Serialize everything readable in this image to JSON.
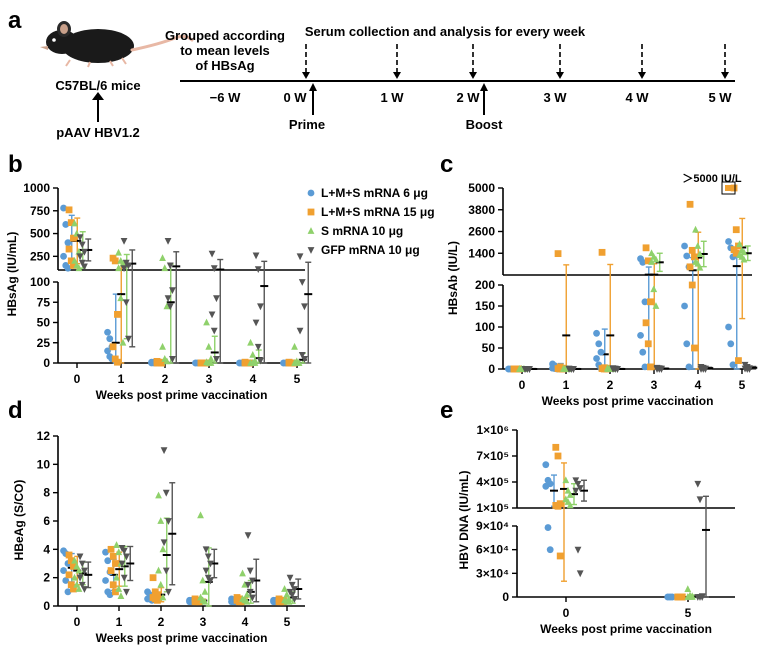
{
  "colors": {
    "blue": "#5b9bd5",
    "orange": "#f0a030",
    "green": "#8fd16b",
    "gray": "#555555",
    "axis": "#000000"
  },
  "panel_a": {
    "letter": "a",
    "mouse_label": "C57BL/6 mice",
    "injection_label": "pAAV HBV1.2",
    "grouped_label": [
      "Grouped according",
      "to mean levels",
      "of HBsAg"
    ],
    "serum_label": "Serum collection and analysis for every week",
    "timepoints": [
      "−6 W",
      "0 W",
      "1 W",
      "2 W",
      "3 W",
      "4 W",
      "5 W"
    ],
    "prime_label": "Prime",
    "boost_label": "Boost"
  },
  "legend": [
    {
      "label": "L+M+S mRNA 6 μg",
      "color": "blue",
      "marker": "circle"
    },
    {
      "label": "L+M+S mRNA 15 μg",
      "color": "orange",
      "marker": "square"
    },
    {
      "label": "S mRNA 10 μg",
      "color": "green",
      "marker": "triangle-up"
    },
    {
      "label": "GFP mRNA 10 μg",
      "color": "gray",
      "marker": "triangle-down"
    }
  ],
  "chart_data": [
    {
      "panel": "b",
      "type": "scatter",
      "ylabel": "HBsAg (IU/mL)",
      "xlabel": "Weeks post prime vaccination",
      "categories": [
        "0",
        "1",
        "2",
        "3",
        "4",
        "5"
      ],
      "y_segments": [
        {
          "range": [
            0,
            100
          ],
          "ticks": [
            0,
            25,
            50,
            75,
            100
          ]
        },
        {
          "range": [
            100,
            1000
          ],
          "ticks": [
            250,
            500,
            750,
            1000
          ]
        }
      ],
      "series": [
        {
          "name": "L+M+S mRNA 6 μg",
          "values": [
            [
              780,
              600,
              400,
              250,
              150,
              120
            ],
            [
              38,
              30,
              20,
              15,
              8,
              5
            ],
            [
              1,
              1,
              0,
              0,
              0,
              0
            ],
            [
              0,
              0,
              0,
              0,
              0,
              0
            ],
            [
              0,
              0,
              0,
              0,
              0,
              0
            ],
            [
              0,
              0,
              0,
              0,
              0,
              0
            ]
          ],
          "mean": [
            420,
            25,
            0.5,
            0,
            0,
            0
          ],
          "sd": [
            280,
            60,
            1,
            0.3,
            0.3,
            0.3
          ]
        },
        {
          "name": "L+M+S mRNA 15 μg",
          "values": [
            [
              760,
              620,
              450,
              330,
              200,
              150
            ],
            [
              230,
              200,
              60,
              20,
              5,
              1
            ],
            [
              2,
              1,
              0,
              0,
              0,
              0
            ],
            [
              0,
              0,
              0,
              0,
              0,
              0
            ],
            [
              1,
              0,
              0,
              0,
              0,
              0
            ],
            [
              1,
              0,
              0,
              0,
              0,
              0
            ]
          ],
          "mean": [
            420,
            85,
            0.8,
            0.1,
            0.2,
            0.2
          ],
          "sd": [
            250,
            100,
            1,
            0.3,
            0.4,
            0.4
          ]
        },
        {
          "name": "S mRNA 10 μg",
          "values": [
            [
              610,
              500,
              300,
              200,
              150,
              120
            ],
            [
              290,
              200,
              170,
              120,
              80,
              25
            ],
            [
              230,
              120,
              70,
              20,
              5,
              2
            ],
            [
              50,
              20,
              5,
              1,
              0,
              0
            ],
            [
              25,
              10,
              3,
              0,
              0,
              0
            ],
            [
              20,
              2,
              0,
              0,
              0,
              0
            ]
          ],
          "mean": [
            320,
            150,
            75,
            13,
            6,
            4
          ],
          "sd": [
            200,
            120,
            90,
            20,
            10,
            8
          ]
        },
        {
          "name": "GFP mRNA 10 μg",
          "values": [
            [
              460,
              380,
              300,
              250,
              180,
              140
            ],
            [
              420,
              180,
              150,
              120,
              75,
              30
            ],
            [
              420,
              150,
              90,
              80,
              70,
              5
            ],
            [
              280,
              120,
              80,
              60,
              40,
              5
            ],
            [
              260,
              110,
              70,
              50,
              20,
              3
            ],
            [
              250,
              100,
              70,
              40,
              10,
              5
            ]
          ],
          "mean": [
            320,
            170,
            140,
            105,
            95,
            85
          ],
          "sd": [
            120,
            150,
            160,
            110,
            100,
            100
          ]
        }
      ]
    },
    {
      "panel": "c",
      "type": "scatter",
      "ylabel": "HBsAb (IU/L)",
      "xlabel": "Weeks post prime vaccination",
      "categories": [
        "0",
        "1",
        "2",
        "3",
        "4",
        "5"
      ],
      "y_segments": [
        {
          "range": [
            0,
            200
          ],
          "ticks": [
            0,
            50,
            100,
            150,
            200
          ]
        },
        {
          "range": [
            200,
            5000
          ],
          "ticks": [
            1400,
            2600,
            3800,
            5000
          ]
        }
      ],
      "annotation": "＞5000 IU/L",
      "series": [
        {
          "name": "L+M+S mRNA 6 μg",
          "values": [
            [
              0,
              0,
              0,
              0,
              0,
              0
            ],
            [
              12,
              8,
              5,
              2,
              1,
              0
            ],
            [
              85,
              60,
              40,
              25,
              10,
              2
            ],
            [
              1100,
              900,
              160,
              80,
              40,
              5
            ],
            [
              1800,
              1250,
              650,
              150,
              60,
              5
            ],
            [
              2050,
              1700,
              1200,
              100,
              60,
              10
            ]
          ],
          "mean": [
            0,
            5,
            35,
            220,
            460,
            690
          ],
          "sd": [
            1,
            8,
            60,
            420,
            700,
            1000
          ]
        },
        {
          "name": "L+M+S mRNA 15 μg",
          "values": [
            [
              0,
              0,
              0,
              0,
              0,
              0
            ],
            [
              1380,
              5,
              2,
              1,
              0,
              0
            ],
            [
              1450,
              3,
              2,
              1,
              0,
              0
            ],
            [
              1700,
              980,
              160,
              110,
              60,
              5
            ],
            [
              4100,
              1560,
              1200,
              650,
              200,
              50
            ],
            [
              5200,
              2700,
              1800,
              1600,
              1400,
              20
            ]
          ],
          "mean": [
            0,
            80,
            80,
            220,
            1160,
            1720
          ],
          "sd": [
            1,
            680,
            700,
            600,
            1400,
            1600
          ]
        },
        {
          "name": "S mRNA 10 μg",
          "values": [
            [
              0,
              0,
              0,
              0,
              0,
              0
            ],
            [
              1,
              0,
              0,
              0,
              0,
              0
            ],
            [
              2,
              1,
              0,
              0,
              0,
              0
            ],
            [
              1400,
              1200,
              1050,
              920,
              190,
              150
            ],
            [
              2700,
              1800,
              1350,
              920,
              820,
              600
            ],
            [
              1900,
              1550,
              1450,
              1300,
              1200,
              1050
            ]
          ],
          "mean": [
            0,
            0,
            0,
            900,
            1360,
            1400
          ],
          "sd": [
            1,
            1,
            1,
            500,
            700,
            400
          ]
        },
        {
          "name": "GFP mRNA 10 μg",
          "values": [
            [
              0,
              0,
              0,
              0,
              0,
              0
            ],
            [
              1,
              0,
              0,
              0,
              0,
              0
            ],
            [
              2,
              1,
              0,
              0,
              0,
              0
            ],
            [
              3,
              2,
              1,
              0,
              0,
              0
            ],
            [
              5,
              3,
              1,
              0,
              0,
              0
            ],
            [
              10,
              5,
              2,
              1,
              0,
              0
            ]
          ],
          "mean": [
            0,
            0,
            0,
            1,
            2,
            3
          ],
          "sd": [
            1,
            1,
            1,
            1,
            2,
            3
          ]
        }
      ]
    },
    {
      "panel": "d",
      "type": "scatter",
      "ylabel": "HBeAg (S/CO)",
      "xlabel": "Weeks post prime vaccination",
      "categories": [
        "0",
        "1",
        "2",
        "3",
        "4",
        "5"
      ],
      "ylim": [
        0,
        12
      ],
      "yticks": [
        0,
        2,
        4,
        6,
        8,
        10,
        12
      ],
      "series": [
        {
          "name": "L+M+S mRNA 6 μg",
          "values": [
            [
              3.9,
              3.7,
              3.0,
              2.5,
              1.8,
              1.0
            ],
            [
              3.8,
              3.2,
              2.4,
              1.8,
              1.0,
              0.8
            ],
            [
              1.0,
              0.8,
              0.6,
              0.5,
              0.5,
              0.4
            ],
            [
              0.4,
              0.4,
              0.3,
              0.3,
              0.3,
              0.3
            ],
            [
              0.5,
              0.4,
              0.4,
              0.3,
              0.3,
              0.3
            ],
            [
              0.4,
              0.4,
              0.3,
              0.3,
              0.3,
              0.3
            ]
          ],
          "mean": [
            2.7,
            2.2,
            0.6,
            0.35,
            0.35,
            0.35
          ],
          "sd": [
            1.0,
            1.1,
            0.25,
            0.1,
            0.1,
            0.1
          ]
        },
        {
          "name": "L+M+S mRNA 15 μg",
          "values": [
            [
              3.6,
              3.2,
              2.8,
              2.2,
              1.5,
              1.2
            ],
            [
              4.0,
              3.5,
              3.0,
              2.5,
              1.5,
              1.0
            ],
            [
              2.0,
              1.0,
              0.8,
              0.6,
              0.5,
              0.4
            ],
            [
              0.5,
              0.4,
              0.4,
              0.3,
              0.3,
              0.3
            ],
            [
              0.6,
              0.5,
              0.4,
              0.4,
              0.3,
              0.3
            ],
            [
              0.5,
              0.4,
              0.4,
              0.3,
              0.3,
              0.3
            ]
          ],
          "mean": [
            2.5,
            2.6,
            0.8,
            0.38,
            0.42,
            0.38
          ],
          "sd": [
            1.0,
            1.2,
            0.5,
            0.1,
            0.15,
            0.1
          ]
        },
        {
          "name": "S mRNA 10 μg",
          "values": [
            [
              3.2,
              2.8,
              2.5,
              2.0,
              1.5,
              1.2
            ],
            [
              4.3,
              3.8,
              3.0,
              2.0,
              1.2,
              0.7
            ],
            [
              7.8,
              6.0,
              4.0,
              2.5,
              1.5,
              0.6
            ],
            [
              6.4,
              1.8,
              1.0,
              0.6,
              0.4,
              0.3
            ],
            [
              2.3,
              1.5,
              0.8,
              0.5,
              0.4,
              0.3
            ],
            [
              1.2,
              0.8,
              0.5,
              0.4,
              0.3,
              0.3
            ]
          ],
          "mean": [
            2.3,
            2.8,
            3.6,
            1.7,
            1.0,
            0.6
          ],
          "sd": [
            0.8,
            1.4,
            2.6,
            2.4,
            0.8,
            0.4
          ]
        },
        {
          "name": "GFP mRNA 10 μg",
          "values": [
            [
              3.5,
              3.0,
              2.5,
              2.0,
              1.5,
              1.2
            ],
            [
              4.1,
              3.9,
              3.5,
              3.0,
              2.0,
              1.0
            ],
            [
              11.0,
              8.0,
              6.0,
              4.5,
              2.5,
              1.0
            ],
            [
              4.0,
              3.5,
              3.0,
              2.5,
              2.0,
              1.8
            ],
            [
              5.0,
              2.5,
              1.8,
              1.5,
              1.0,
              0.6
            ],
            [
              2.0,
              1.5,
              1.2,
              1.0,
              0.8,
              0.5
            ]
          ],
          "mean": [
            2.2,
            3.0,
            5.1,
            3.0,
            1.8,
            1.2
          ],
          "sd": [
            0.9,
            1.2,
            3.6,
            1.0,
            1.5,
            0.7
          ]
        }
      ]
    },
    {
      "panel": "e",
      "type": "scatter",
      "ylabel": "HBV DNA (IU/mL)",
      "xlabel": "Weeks post prime vaccination",
      "categories": [
        "0",
        "5"
      ],
      "y_segments": [
        {
          "range": [
            0,
            90000
          ],
          "ticks": [
            "0",
            "3×10⁴",
            "6×10⁴",
            "9×10⁴"
          ],
          "tick_values": [
            0,
            30000,
            60000,
            90000
          ]
        },
        {
          "range": [
            100000,
            1000000
          ],
          "ticks": [
            "1×10⁵",
            "4×10⁵",
            "7×10⁵",
            "1×10⁶"
          ],
          "tick_values": [
            100000,
            400000,
            700000,
            1000000
          ]
        }
      ],
      "series": [
        {
          "name": "L+M+S mRNA 6 μg",
          "values": [
            [
              600000,
              420000,
              380000,
              350000,
              88000,
              60000
            ],
            [
              0,
              0,
              0,
              0,
              0,
              0
            ]
          ],
          "mean": [
            300000,
            0
          ],
          "sd": [
            180000,
            200
          ]
        },
        {
          "name": "L+M+S mRNA 15 μg",
          "values": [
            [
              800000,
              700000,
              150000,
              130000,
              120000,
              52000
            ],
            [
              0,
              0,
              0,
              0,
              0,
              0
            ]
          ],
          "mean": [
            320000,
            0
          ],
          "sd": [
            300000,
            200
          ]
        },
        {
          "name": "S mRNA 10 μg",
          "values": [
            [
              420000,
              300000,
              250000,
              200000,
              170000,
              130000
            ],
            [
              10000,
              2000,
              1000,
              0,
              0,
              0
            ]
          ],
          "mean": [
            260000,
            500
          ],
          "sd": [
            120000,
            2000
          ]
        },
        {
          "name": "GFP mRNA 10 μg",
          "values": [
            [
              420000,
              380000,
              330000,
              300000,
              60000,
              30000
            ],
            [
              380000,
              200000,
              1000,
              0,
              0,
              0
            ]
          ],
          "mean": [
            300000,
            85000
          ],
          "sd": [
            120000,
            150000
          ]
        }
      ]
    }
  ]
}
